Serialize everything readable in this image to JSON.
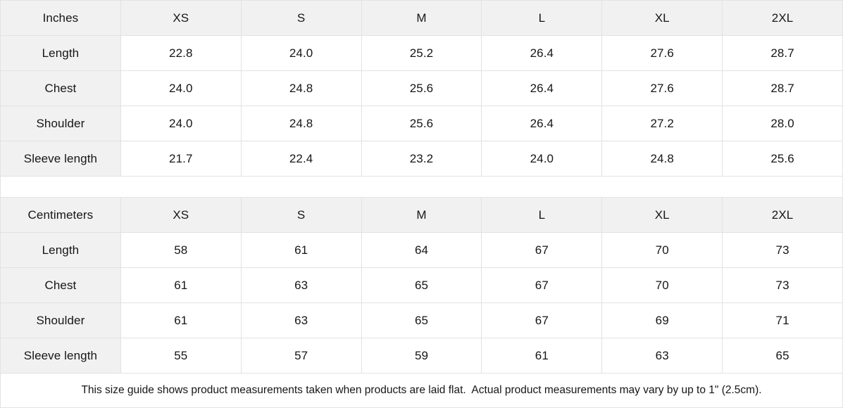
{
  "tables": [
    {
      "unit_label": "Inches",
      "sizes": [
        "XS",
        "S",
        "M",
        "L",
        "XL",
        "2XL"
      ],
      "rows": [
        {
          "label": "Length",
          "values": [
            "22.8",
            "24.0",
            "25.2",
            "26.4",
            "27.6",
            "28.7"
          ]
        },
        {
          "label": "Chest",
          "values": [
            "24.0",
            "24.8",
            "25.6",
            "26.4",
            "27.6",
            "28.7"
          ]
        },
        {
          "label": "Shoulder",
          "values": [
            "24.0",
            "24.8",
            "25.6",
            "26.4",
            "27.2",
            "28.0"
          ]
        },
        {
          "label": "Sleeve length",
          "values": [
            "21.7",
            "22.4",
            "23.2",
            "24.0",
            "24.8",
            "25.6"
          ]
        }
      ]
    },
    {
      "unit_label": "Centimeters",
      "sizes": [
        "XS",
        "S",
        "M",
        "L",
        "XL",
        "2XL"
      ],
      "rows": [
        {
          "label": "Length",
          "values": [
            "58",
            "61",
            "64",
            "67",
            "70",
            "73"
          ]
        },
        {
          "label": "Chest",
          "values": [
            "61",
            "63",
            "65",
            "67",
            "70",
            "73"
          ]
        },
        {
          "label": "Shoulder",
          "values": [
            "61",
            "63",
            "65",
            "67",
            "69",
            "71"
          ]
        },
        {
          "label": "Sleeve length",
          "values": [
            "55",
            "57",
            "59",
            "61",
            "63",
            "65"
          ]
        }
      ]
    }
  ],
  "footer": {
    "note": "This size guide shows product measurements taken when products are laid flat.  Actual product measurements may vary by up to 1\" (2.5cm)."
  },
  "colors": {
    "header_cell_bg": "#f1f1f1",
    "grid_line": "#e2e2e2",
    "text": "#161616"
  }
}
